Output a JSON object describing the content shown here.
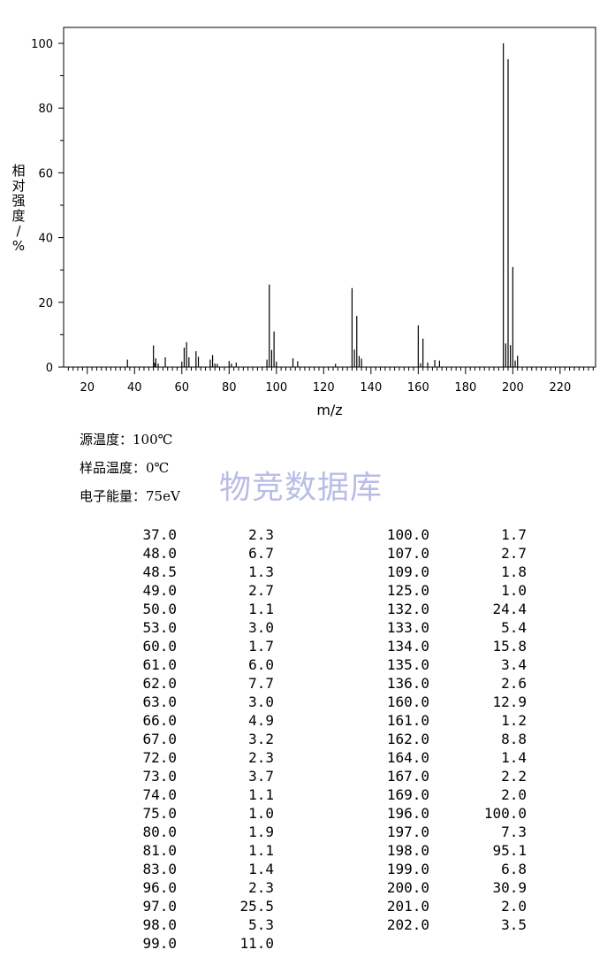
{
  "chart_data": {
    "type": "bar",
    "title": "",
    "xlabel": "m/z",
    "ylabel": "相对强度/%",
    "xlim": [
      10,
      235
    ],
    "ylim": [
      0,
      100
    ],
    "xticks": [
      20,
      40,
      60,
      80,
      100,
      120,
      140,
      160,
      180,
      200,
      220
    ],
    "yticks": [
      0,
      20,
      40,
      60,
      80,
      100
    ],
    "grid": false,
    "peaks": [
      {
        "x": 37.0,
        "y": 2.3
      },
      {
        "x": 48.0,
        "y": 6.7
      },
      {
        "x": 48.5,
        "y": 1.3
      },
      {
        "x": 49.0,
        "y": 2.7
      },
      {
        "x": 50.0,
        "y": 1.1
      },
      {
        "x": 53.0,
        "y": 3.0
      },
      {
        "x": 60.0,
        "y": 1.7
      },
      {
        "x": 61.0,
        "y": 6.0
      },
      {
        "x": 62.0,
        "y": 7.7
      },
      {
        "x": 63.0,
        "y": 3.0
      },
      {
        "x": 66.0,
        "y": 4.9
      },
      {
        "x": 67.0,
        "y": 3.2
      },
      {
        "x": 72.0,
        "y": 2.3
      },
      {
        "x": 73.0,
        "y": 3.7
      },
      {
        "x": 74.0,
        "y": 1.1
      },
      {
        "x": 75.0,
        "y": 1.0
      },
      {
        "x": 80.0,
        "y": 1.9
      },
      {
        "x": 81.0,
        "y": 1.1
      },
      {
        "x": 83.0,
        "y": 1.4
      },
      {
        "x": 96.0,
        "y": 2.3
      },
      {
        "x": 97.0,
        "y": 25.5
      },
      {
        "x": 98.0,
        "y": 5.3
      },
      {
        "x": 99.0,
        "y": 11.0
      },
      {
        "x": 100.0,
        "y": 1.7
      },
      {
        "x": 107.0,
        "y": 2.7
      },
      {
        "x": 109.0,
        "y": 1.8
      },
      {
        "x": 125.0,
        "y": 1.0
      },
      {
        "x": 132.0,
        "y": 24.4
      },
      {
        "x": 133.0,
        "y": 5.4
      },
      {
        "x": 134.0,
        "y": 15.8
      },
      {
        "x": 135.0,
        "y": 3.4
      },
      {
        "x": 136.0,
        "y": 2.6
      },
      {
        "x": 160.0,
        "y": 12.9
      },
      {
        "x": 161.0,
        "y": 1.2
      },
      {
        "x": 162.0,
        "y": 8.8
      },
      {
        "x": 164.0,
        "y": 1.4
      },
      {
        "x": 167.0,
        "y": 2.2
      },
      {
        "x": 169.0,
        "y": 2.0
      },
      {
        "x": 196.0,
        "y": 100.0
      },
      {
        "x": 197.0,
        "y": 7.3
      },
      {
        "x": 198.0,
        "y": 95.1
      },
      {
        "x": 199.0,
        "y": 6.8
      },
      {
        "x": 200.0,
        "y": 30.9
      },
      {
        "x": 201.0,
        "y": 2.0
      },
      {
        "x": 202.0,
        "y": 3.5
      }
    ]
  },
  "info": {
    "source_temp": "源温度：100℃",
    "sample_temp": "样品温度：0℃",
    "electron_energy": "电子能量：75eV"
  },
  "watermark": "物竞数据库",
  "table_left": [
    [
      "37.0",
      "2.3"
    ],
    [
      "48.0",
      "6.7"
    ],
    [
      "48.5",
      "1.3"
    ],
    [
      "49.0",
      "2.7"
    ],
    [
      "50.0",
      "1.1"
    ],
    [
      "53.0",
      "3.0"
    ],
    [
      "60.0",
      "1.7"
    ],
    [
      "61.0",
      "6.0"
    ],
    [
      "62.0",
      "7.7"
    ],
    [
      "63.0",
      "3.0"
    ],
    [
      "66.0",
      "4.9"
    ],
    [
      "67.0",
      "3.2"
    ],
    [
      "72.0",
      "2.3"
    ],
    [
      "73.0",
      "3.7"
    ],
    [
      "74.0",
      "1.1"
    ],
    [
      "75.0",
      "1.0"
    ],
    [
      "80.0",
      "1.9"
    ],
    [
      "81.0",
      "1.1"
    ],
    [
      "83.0",
      "1.4"
    ],
    [
      "96.0",
      "2.3"
    ],
    [
      "97.0",
      "25.5"
    ],
    [
      "98.0",
      "5.3"
    ],
    [
      "99.0",
      "11.0"
    ]
  ],
  "table_right": [
    [
      "100.0",
      "1.7"
    ],
    [
      "107.0",
      "2.7"
    ],
    [
      "109.0",
      "1.8"
    ],
    [
      "125.0",
      "1.0"
    ],
    [
      "132.0",
      "24.4"
    ],
    [
      "133.0",
      "5.4"
    ],
    [
      "134.0",
      "15.8"
    ],
    [
      "135.0",
      "3.4"
    ],
    [
      "136.0",
      "2.6"
    ],
    [
      "160.0",
      "12.9"
    ],
    [
      "161.0",
      "1.2"
    ],
    [
      "162.0",
      "8.8"
    ],
    [
      "164.0",
      "1.4"
    ],
    [
      "167.0",
      "2.2"
    ],
    [
      "169.0",
      "2.0"
    ],
    [
      "196.0",
      "100.0"
    ],
    [
      "197.0",
      "7.3"
    ],
    [
      "198.0",
      "95.1"
    ],
    [
      "199.0",
      "6.8"
    ],
    [
      "200.0",
      "30.9"
    ],
    [
      "201.0",
      "2.0"
    ],
    [
      "202.0",
      "3.5"
    ]
  ]
}
